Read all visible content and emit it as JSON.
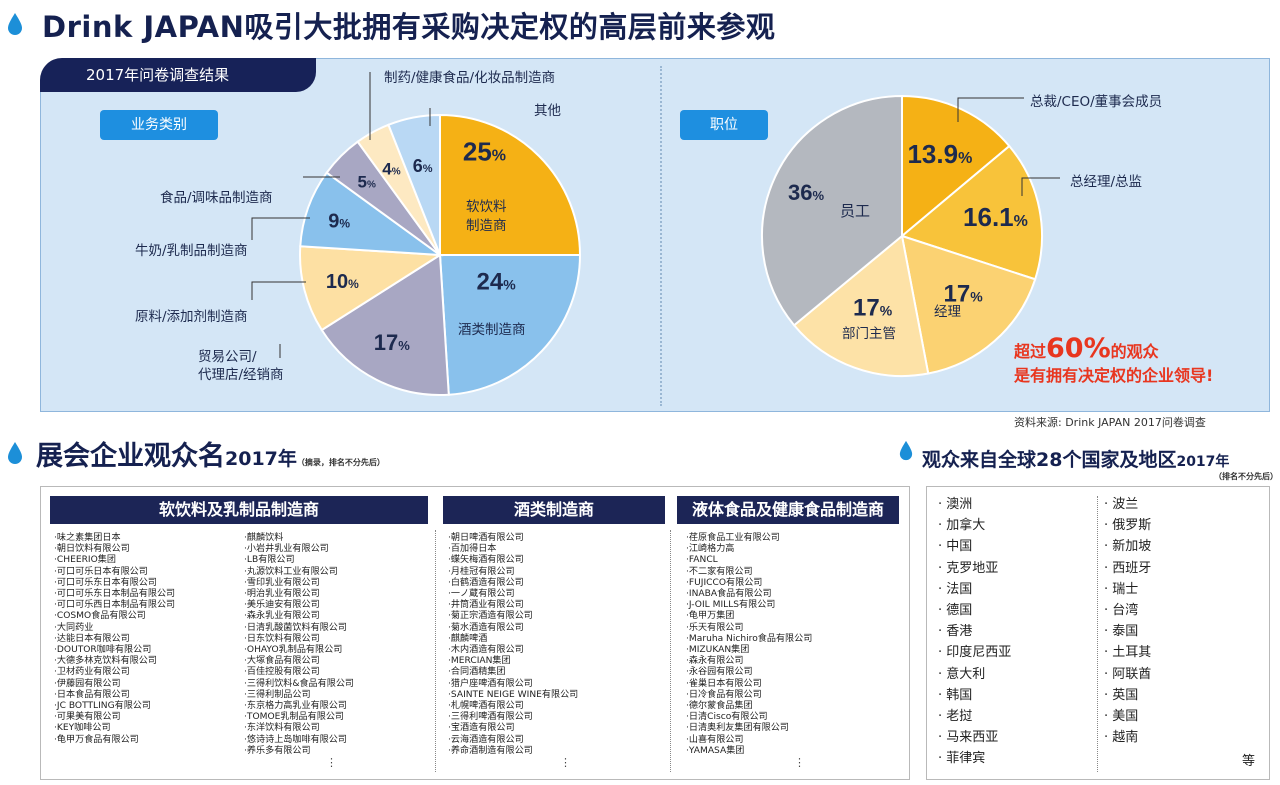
{
  "title": "Drink JAPAN吸引大批拥有采购决定权的高层前来参观",
  "survey": {
    "tab": "2017年问卷调查结果",
    "business": {
      "label": "业务类别",
      "slices": [
        {
          "value": 25,
          "name": "软饮料制造商",
          "name_lines": [
            "软饮料",
            "制造商"
          ],
          "color": "#f5b115"
        },
        {
          "value": 24,
          "name": "酒类制造商",
          "color": "#89c1ec"
        },
        {
          "value": 17,
          "name": "贸易公司/代理店/经销商",
          "name_lines": [
            "贸易公司/",
            "代理店/经销商"
          ],
          "color": "#a8a7c3"
        },
        {
          "value": 10,
          "name": "原料/添加剂制造商",
          "color": "#fde0a3"
        },
        {
          "value": 9,
          "name": "牛奶/乳制品制造商",
          "color": "#89c1ec"
        },
        {
          "value": 5,
          "name": "食品/调味品制造商",
          "color": "#a8a7c3"
        },
        {
          "value": 4,
          "name": "制药/健康食品/化妆品制造商",
          "color": "#fde9c2"
        },
        {
          "value": 6,
          "name": "其他",
          "color": "#b9d8f4"
        }
      ]
    },
    "position": {
      "label": "职位",
      "slices": [
        {
          "value": 13.9,
          "name": "总裁/CEO/董事会成员",
          "color": "#f5b115"
        },
        {
          "value": 16.1,
          "name": "总经理/总监",
          "color": "#f8c33a"
        },
        {
          "value": 17,
          "name": "经理",
          "color": "#fbd272"
        },
        {
          "value": 17,
          "name": "部门主管",
          "color": "#fde2a7"
        },
        {
          "value": 36,
          "name": "员工",
          "color": "#b4b8bf"
        }
      ]
    },
    "callout": {
      "pre": "超过",
      "big": "60%",
      "post": "的观众",
      "line2": "是有拥有决定权的企业领导!"
    },
    "source": "资料来源: Drink JAPAN 2017问卷调查"
  },
  "exhibitors": {
    "title": "展会企业观众名",
    "year": "2017年",
    "note": "（摘录，排名不分先后）",
    "columns": [
      {
        "title": "软饮料及乳制品制造商",
        "left_list": [
          "味之素集团日本",
          "朝日饮料有限公司",
          "CHEERIO集团",
          "可口可乐日本有限公司",
          "可口可乐东日本有限公司",
          "可口可乐东日本制品有限公司",
          "可口可乐西日本制品有限公司",
          "COSMO食品有限公司",
          "大同药业",
          "达能日本有限公司",
          "DOUTOR咖啡有限公司",
          "大德多林克饮料有限公司",
          "卫材药业有限公司",
          "伊藤园有限公司",
          "日本食品有限公司",
          "JC BOTTLING有限公司",
          "可果美有限公司",
          "KEY咖啡公司",
          "龟甲万食品有限公司"
        ],
        "right_list": [
          "麒麟饮料",
          "小岩井乳业有限公司",
          "LB有限公司",
          "丸源饮料工业有限公司",
          "雪印乳业有限公司",
          "明治乳业有限公司",
          "美乐迪安有限公司",
          "森永乳业有限公司",
          "日清乳酸菌饮料有限公司",
          "日东饮料有限公司",
          "OHAYO乳制品有限公司",
          "大塚食品有限公司",
          "百佳控股有限公司",
          "三得利饮料&食品有限公司",
          "三得利制品公司",
          "东京格力高乳业有限公司",
          "TOMOE乳制品有限公司",
          "东洋饮料有限公司",
          "悠诗诗上岛咖啡有限公司",
          "养乐多有限公司"
        ],
        "more": "⋮"
      },
      {
        "title": "酒类制造商",
        "list": [
          "朝日啤酒有限公司",
          "百加得日本",
          "蝶矢梅酒有限公司",
          "月桂冠有限公司",
          "白鹤酒造有限公司",
          "一ノ蔵有限公司",
          "井筒酒业有限公司",
          "菊正宗酒造有限公司",
          "菊水酒造有限公司",
          "麒麟啤酒",
          "木内酒造有限公司",
          "MERCIAN集团",
          "合同酒精集团",
          "猎户座啤酒有限公司",
          "SAINTE NEIGE WINE有限公司",
          "札幌啤酒有限公司",
          "三得利啤酒有限公司",
          "宝酒造有限公司",
          "云海酒造有限公司",
          "养命酒制造有限公司"
        ],
        "more": "⋮"
      },
      {
        "title": "液体食品及健康食品制造商",
        "list": [
          "荏原食品工业有限公司",
          "江崎格力高",
          "FANCL",
          "不二家有限公司",
          "FUJICCO有限公司",
          "INABA食品有限公司",
          "J-OIL MILLS有限公司",
          "龟甲万集团",
          "乐天有限公司",
          "Maruha Nichiro食品有限公司",
          "MIZUKAN集团",
          "森永有限公司",
          "永谷园有限公司",
          "雀巢日本有限公司",
          "日冷食品有限公司",
          "德尔蒙食品集团",
          "日清Cisco有限公司",
          "日清奥利友集团有限公司",
          "山喜有限公司",
          "YAMASA集团"
        ],
        "more": "⋮"
      }
    ]
  },
  "countries": {
    "title": "观众来自全球28个国家及地区",
    "year": "2017年",
    "note": "（排名不分先后）",
    "left": [
      "澳洲",
      "加拿大",
      "中国",
      "克罗地亚",
      "法国",
      "德国",
      "香港",
      "印度尼西亚",
      "意大利",
      "韩国",
      "老挝",
      "马来西亚",
      "菲律宾"
    ],
    "right": [
      "波兰",
      "俄罗斯",
      "新加坡",
      "西班牙",
      "瑞士",
      "台湾",
      "泰国",
      "土耳其",
      "阿联酋",
      "英国",
      "美国",
      "越南"
    ],
    "etc": "等"
  }
}
